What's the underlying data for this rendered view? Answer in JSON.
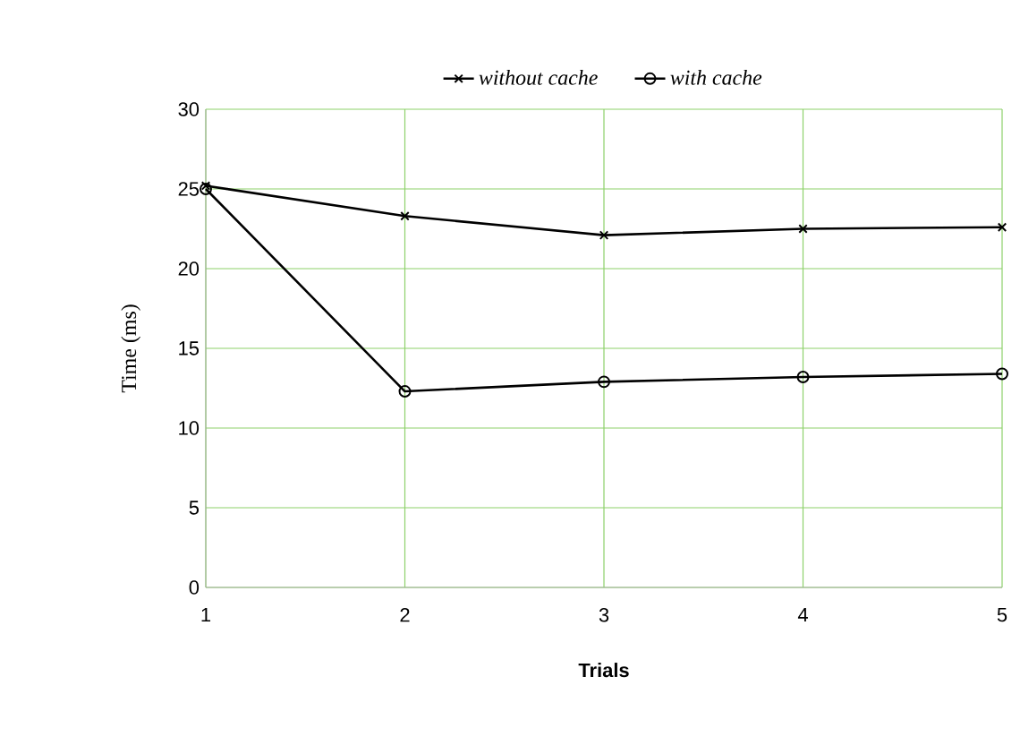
{
  "chart_data": {
    "type": "line",
    "xlabel": "Trials",
    "ylabel": "Time (ms)",
    "x": [
      1,
      2,
      3,
      4,
      5
    ],
    "series": [
      {
        "name": "without cache",
        "color": "#000000",
        "marker": "cross",
        "values": [
          25.2,
          23.3,
          22.1,
          22.5,
          22.6
        ]
      },
      {
        "name": "with cache",
        "color": "#000000",
        "marker": "circle",
        "values": [
          25.0,
          12.3,
          12.9,
          13.2,
          13.4
        ]
      }
    ],
    "xlim": [
      1,
      5
    ],
    "xticks": [
      1,
      2,
      3,
      4,
      5
    ],
    "ylim": [
      0,
      30
    ],
    "yticks": [
      0,
      5,
      10,
      15,
      20,
      25,
      30
    ],
    "grid": true,
    "legend": "top",
    "line_style": "solid"
  }
}
